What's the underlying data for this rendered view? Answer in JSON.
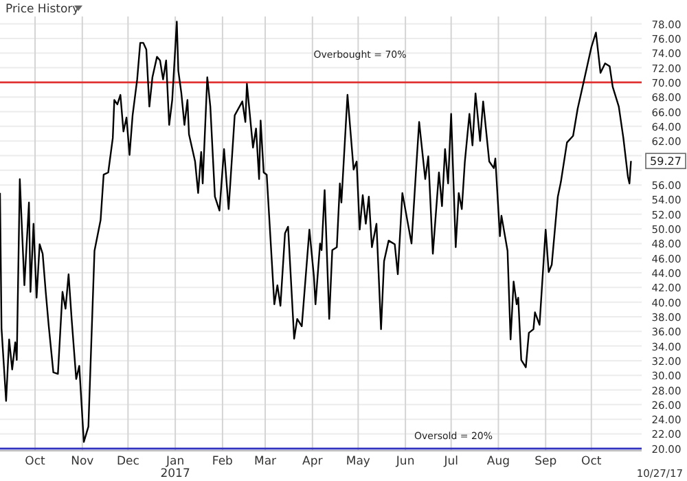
{
  "chart_data": {
    "type": "line",
    "annotations": [
      "Price History",
      "10/27/17",
      {
        "text": "59.27",
        "x": "2017-10-27",
        "y": 59.27
      }
    ],
    "x": [
      "2016-09-08",
      "2016-09-09",
      "2016-09-12",
      "2016-09-14",
      "2016-09-16",
      "2016-09-18",
      "2016-09-19",
      "2016-09-21",
      "2016-09-24",
      "2016-09-27",
      "2016-09-28",
      "2016-09-30",
      "2016-10-02",
      "2016-10-04",
      "2016-10-06",
      "2016-10-08",
      "2016-10-10",
      "2016-10-13",
      "2016-10-16",
      "2016-10-19",
      "2016-10-21",
      "2016-10-23",
      "2016-10-25",
      "2016-10-28",
      "2016-10-30",
      "2016-11-02",
      "2016-11-05",
      "2016-11-09",
      "2016-11-13",
      "2016-11-15",
      "2016-11-18",
      "2016-11-21",
      "2016-11-22",
      "2016-11-24",
      "2016-11-26",
      "2016-11-28",
      "2016-11-30",
      "2016-12-02",
      "2016-12-04",
      "2016-12-07",
      "2016-12-09",
      "2016-12-11",
      "2016-12-13",
      "2016-12-15",
      "2016-12-17",
      "2016-12-20",
      "2016-12-22",
      "2016-12-24",
      "2016-12-26",
      "2016-12-28",
      "2016-12-30",
      "2017-01-02",
      "2017-01-03",
      "2017-01-05",
      "2017-01-07",
      "2017-01-09",
      "2017-01-10",
      "2017-01-14",
      "2017-01-16",
      "2017-01-18",
      "2017-01-19",
      "2017-01-22",
      "2017-01-24",
      "2017-01-27",
      "2017-01-30",
      "2017-02-02",
      "2017-02-05",
      "2017-02-09",
      "2017-02-14",
      "2017-02-16",
      "2017-02-17",
      "2017-02-21",
      "2017-02-23",
      "2017-02-25",
      "2017-02-26",
      "2017-02-28",
      "2017-03-02",
      "2017-03-07",
      "2017-03-09",
      "2017-03-11",
      "2017-03-14",
      "2017-03-16",
      "2017-03-20",
      "2017-03-22",
      "2017-03-25",
      "2017-03-30",
      "2017-04-02",
      "2017-04-03",
      "2017-04-06",
      "2017-04-07",
      "2017-04-09",
      "2017-04-12",
      "2017-04-14",
      "2017-04-17",
      "2017-04-19",
      "2017-04-20",
      "2017-04-24",
      "2017-04-28",
      "2017-04-30",
      "2017-05-02",
      "2017-05-04",
      "2017-05-06",
      "2017-05-08",
      "2017-05-10",
      "2017-05-13",
      "2017-05-16",
      "2017-05-18",
      "2017-05-21",
      "2017-05-25",
      "2017-05-27",
      "2017-05-30",
      "2017-06-05",
      "2017-06-08",
      "2017-06-10",
      "2017-06-14",
      "2017-06-16",
      "2017-06-19",
      "2017-06-23",
      "2017-06-25",
      "2017-06-27",
      "2017-06-29",
      "2017-07-01",
      "2017-07-04",
      "2017-07-06",
      "2017-07-08",
      "2017-07-10",
      "2017-07-13",
      "2017-07-15",
      "2017-07-17",
      "2017-07-20",
      "2017-07-22",
      "2017-07-26",
      "2017-07-29",
      "2017-07-30",
      "2017-08-02",
      "2017-08-03",
      "2017-08-07",
      "2017-08-09",
      "2017-08-11",
      "2017-08-13",
      "2017-08-14",
      "2017-08-16",
      "2017-08-19",
      "2017-08-21",
      "2017-08-24",
      "2017-08-25",
      "2017-08-28",
      "2017-09-01",
      "2017-09-03",
      "2017-09-05",
      "2017-09-09",
      "2017-09-11",
      "2017-09-15",
      "2017-09-19",
      "2017-09-22",
      "2017-09-26",
      "2017-10-01",
      "2017-10-04",
      "2017-10-07",
      "2017-10-10",
      "2017-10-13",
      "2017-10-15",
      "2017-10-19",
      "2017-10-22",
      "2017-10-25",
      "2017-10-26",
      "2017-10-27"
    ],
    "series": [
      {
        "color": "#000000",
        "values": [
          54.9,
          36.4,
          26.5,
          34.9,
          30.8,
          34.5,
          32.1,
          56.8,
          42.3,
          53.6,
          41.4,
          50.7,
          40.6,
          47.9,
          46.6,
          41.4,
          36.7,
          30.4,
          30.2,
          41.4,
          39.1,
          43.8,
          37.7,
          29.5,
          31.3,
          20.9,
          23.0,
          47.0,
          51.2,
          57.4,
          57.7,
          62.4,
          67.6,
          67.0,
          68.3,
          63.3,
          65.2,
          60.1,
          65.5,
          70.4,
          75.4,
          75.4,
          74.5,
          66.7,
          70.7,
          73.5,
          73.0,
          70.4,
          73.0,
          64.2,
          67.6,
          78.3,
          71.6,
          68.5,
          64.2,
          67.6,
          62.9,
          59.2,
          54.9,
          60.5,
          56.2,
          70.7,
          66.7,
          54.4,
          52.5,
          60.9,
          52.7,
          65.5,
          67.4,
          64.6,
          69.8,
          61.1,
          63.7,
          56.8,
          64.8,
          57.7,
          57.4,
          39.7,
          42.3,
          39.5,
          49.4,
          50.3,
          35.0,
          37.7,
          36.7,
          49.9,
          43.4,
          39.7,
          48.0,
          47.1,
          55.3,
          37.7,
          47.1,
          47.5,
          56.2,
          53.6,
          68.3,
          58.1,
          59.2,
          49.9,
          54.6,
          50.7,
          54.4,
          47.5,
          50.7,
          36.3,
          45.6,
          48.4,
          47.9,
          43.8,
          54.9,
          48.0,
          58.1,
          64.6,
          56.8,
          59.9,
          46.6,
          57.7,
          53.1,
          60.9,
          56.2,
          65.7,
          47.5,
          54.9,
          52.7,
          59.2,
          65.7,
          61.4,
          68.5,
          62.0,
          67.4,
          59.2,
          58.3,
          59.6,
          49.0,
          51.8,
          47.0,
          34.9,
          42.8,
          39.7,
          40.6,
          32.1,
          31.1,
          35.8,
          36.3,
          38.6,
          36.9,
          49.9,
          44.1,
          45.1,
          54.4,
          56.4,
          61.8,
          62.7,
          66.4,
          70.1,
          74.8,
          76.8,
          71.3,
          72.6,
          72.2,
          69.4,
          66.7,
          62.4,
          57.1,
          56.2,
          59.27
        ]
      }
    ],
    "xlim": [
      "2016-09-08",
      "2017-11-03"
    ],
    "xticks": [
      {
        "value": "2016-10-01",
        "label": "Oct"
      },
      {
        "value": "2016-11-01",
        "label": "Nov"
      },
      {
        "value": "2016-12-01",
        "label": "Dec"
      },
      {
        "value": "2017-01-01",
        "label": "Jan\n2017"
      },
      {
        "value": "2017-02-01",
        "label": "Feb"
      },
      {
        "value": "2017-03-01",
        "label": "Mar"
      },
      {
        "value": "2017-04-01",
        "label": "Apr"
      },
      {
        "value": "2017-05-01",
        "label": "May"
      },
      {
        "value": "2017-06-01",
        "label": "Jun"
      },
      {
        "value": "2017-07-01",
        "label": "Jul"
      },
      {
        "value": "2017-08-01",
        "label": "Aug"
      },
      {
        "value": "2017-09-01",
        "label": "Sep"
      },
      {
        "value": "2017-10-01",
        "label": "Oct"
      }
    ],
    "ylim": [
      19.7,
      79
    ],
    "yticks": [
      {
        "value": 20,
        "label": "20.00"
      },
      {
        "value": 22,
        "label": "22.00"
      },
      {
        "value": 24,
        "label": "24.00"
      },
      {
        "value": 26,
        "label": "26.00"
      },
      {
        "value": 28,
        "label": "28.00"
      },
      {
        "value": 30,
        "label": "30.00"
      },
      {
        "value": 32,
        "label": "32.00"
      },
      {
        "value": 34,
        "label": "34.00"
      },
      {
        "value": 36,
        "label": "36.00"
      },
      {
        "value": 38,
        "label": "38.00"
      },
      {
        "value": 40,
        "label": "40.00"
      },
      {
        "value": 42,
        "label": "42.00"
      },
      {
        "value": 44,
        "label": "44.00"
      },
      {
        "value": 46,
        "label": "46.00"
      },
      {
        "value": 48,
        "label": "48.00"
      },
      {
        "value": 50,
        "label": "50.00"
      },
      {
        "value": 52,
        "label": "52.00"
      },
      {
        "value": 54,
        "label": "54.00"
      },
      {
        "value": 56,
        "label": "56.00"
      },
      {
        "value": 58,
        "label": null
      },
      {
        "value": 60,
        "label": null
      },
      {
        "value": 62,
        "label": "62.00"
      },
      {
        "value": 64,
        "label": "64.00"
      },
      {
        "value": 66,
        "label": "66.00"
      },
      {
        "value": 68,
        "label": "68.00"
      },
      {
        "value": 70,
        "label": "70.00"
      },
      {
        "value": 72,
        "label": "72.00"
      },
      {
        "value": 74,
        "label": "74.00"
      },
      {
        "value": 76,
        "label": "76.00"
      },
      {
        "value": 78,
        "label": "78.00"
      }
    ],
    "ref_lines": [
      {
        "axis": "y",
        "value": 70,
        "label": "Overbought = 70%",
        "color": "#e03030"
      },
      {
        "axis": "y",
        "value": 20,
        "label": "Oversold = 20%",
        "color": "#3030c0"
      }
    ],
    "grid": true,
    "marker": "none",
    "line_style": "solid"
  }
}
